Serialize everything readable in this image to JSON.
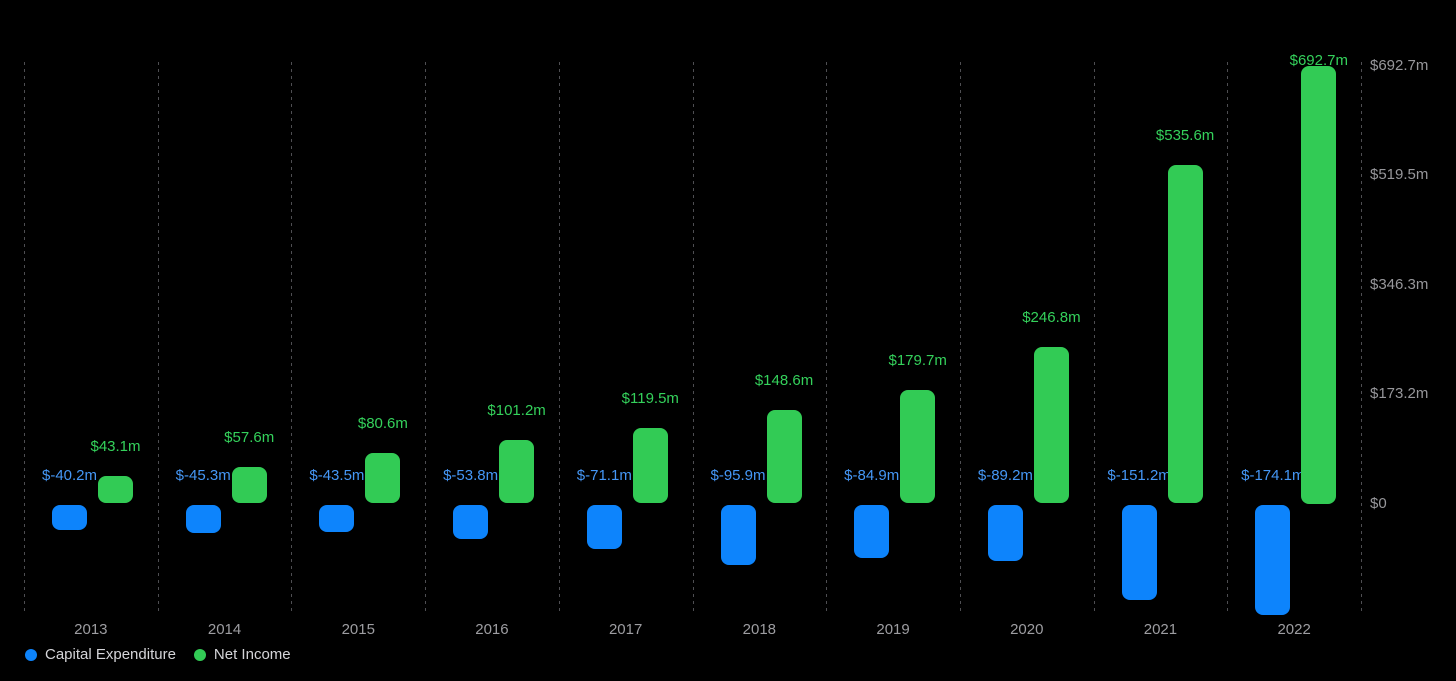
{
  "chart_data": {
    "type": "bar",
    "title": "",
    "categories": [
      "2013",
      "2014",
      "2015",
      "2016",
      "2017",
      "2018",
      "2019",
      "2020",
      "2021",
      "2022"
    ],
    "series": [
      {
        "name": "Capital Expenditure",
        "color": "#0d84fc",
        "label_color": "#4597f6",
        "values": [
          -40.2,
          -45.3,
          -43.5,
          -53.8,
          -71.1,
          -95.9,
          -84.9,
          -89.2,
          -151.2,
          -174.1
        ],
        "labels": [
          "$-40.2m",
          "$-45.3m",
          "$-43.5m",
          "$-53.8m",
          "$-71.1m",
          "$-95.9m",
          "$-84.9m",
          "$-89.2m",
          "$-151.2m",
          "$-174.1m"
        ]
      },
      {
        "name": "Net Income",
        "color": "#32cb55",
        "label_color": "#34d15b",
        "values": [
          43.1,
          57.6,
          80.6,
          101.2,
          119.5,
          148.6,
          179.7,
          246.8,
          535.6,
          692.7
        ],
        "labels": [
          "$43.1m",
          "$57.6m",
          "$80.6m",
          "$101.2m",
          "$119.5m",
          "$148.6m",
          "$179.7m",
          "$246.8m",
          "$535.6m",
          "$692.7m"
        ]
      }
    ],
    "y_axis": {
      "position": "right",
      "ticks": [
        {
          "value": 0,
          "label": "$0"
        },
        {
          "value": 173.2,
          "label": "$173.2m"
        },
        {
          "value": 346.3,
          "label": "$346.3m"
        },
        {
          "value": 519.5,
          "label": "$519.5m"
        },
        {
          "value": 692.7,
          "label": "$692.7m"
        }
      ]
    },
    "ylim": [
      -174.1,
      692.7
    ],
    "grid": "vertical-dashed",
    "legend": {
      "position": "bottom-left",
      "items": [
        {
          "label": "Capital Expenditure",
          "color": "#0d84fc"
        },
        {
          "label": "Net Income",
          "color": "#32cb55"
        }
      ]
    },
    "colors": {
      "background": "#000000",
      "gridline": "#4e4e52",
      "axis_text": "#97979b",
      "legend_text": "#d4d4d8"
    }
  }
}
